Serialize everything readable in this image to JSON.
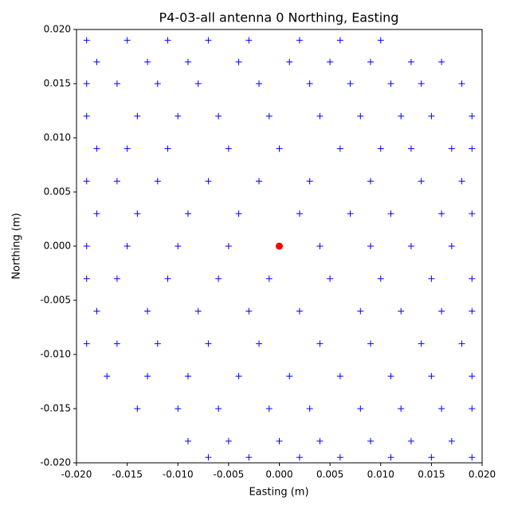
{
  "chart_data": {
    "type": "scatter",
    "title": "P4-03-all antenna 0 Northing, Easting",
    "x_label": "Easting (m)",
    "y_label": "Northing (m)",
    "xlim": [
      -0.02,
      0.02
    ],
    "ylim": [
      -0.02,
      0.02
    ],
    "xticks": [
      {
        "value": -0.02,
        "label": "-0.020"
      },
      {
        "value": -0.015,
        "label": "-0.015"
      },
      {
        "value": -0.01,
        "label": "-0.010"
      },
      {
        "value": -0.005,
        "label": "-0.005"
      },
      {
        "value": 0,
        "label": "0.000"
      },
      {
        "value": 0.005,
        "label": "0.005"
      },
      {
        "value": 0.01,
        "label": "0.010"
      },
      {
        "value": 0.015,
        "label": "0.015"
      },
      {
        "value": 0.02,
        "label": "0.020"
      }
    ],
    "yticks": [
      {
        "value": -0.02,
        "label": "-0.020"
      },
      {
        "value": -0.015,
        "label": "-0.015"
      },
      {
        "value": -0.01,
        "label": "-0.010"
      },
      {
        "value": -0.005,
        "label": "-0.005"
      },
      {
        "value": 0,
        "label": "0.000"
      },
      {
        "value": 0.005,
        "label": "0.005"
      },
      {
        "value": 0.01,
        "label": "0.010"
      },
      {
        "value": 0.015,
        "label": "0.015"
      },
      {
        "value": 0.02,
        "label": "0.020"
      }
    ],
    "series": [
      {
        "color": "#0000ff",
        "marker": "+",
        "x": [
          -0.019,
          -0.015,
          -0.011,
          -0.007,
          -0.003,
          0.002,
          0.006,
          0.01,
          -0.018,
          -0.013,
          -0.009,
          -0.004,
          0.001,
          0.005,
          0.009,
          0.013,
          0.016,
          -0.019,
          -0.016,
          -0.012,
          -0.008,
          -0.002,
          0.003,
          0.007,
          0.011,
          0.014,
          0.018,
          -0.019,
          -0.014,
          -0.01,
          -0.006,
          -0.001,
          0.004,
          0.008,
          0.012,
          0.015,
          0.019,
          -0.018,
          -0.015,
          -0.011,
          -0.005,
          0.0,
          0.006,
          0.01,
          0.013,
          0.017,
          0.019,
          -0.019,
          -0.016,
          -0.012,
          -0.007,
          -0.002,
          0.003,
          0.009,
          0.014,
          0.018,
          -0.018,
          -0.014,
          -0.009,
          -0.004,
          0.002,
          0.007,
          0.011,
          0.016,
          0.019,
          -0.019,
          -0.015,
          -0.01,
          -0.005,
          0.004,
          0.009,
          0.013,
          0.017,
          -0.019,
          -0.016,
          -0.011,
          -0.006,
          -0.001,
          0.005,
          0.01,
          0.015,
          0.019,
          -0.018,
          -0.013,
          -0.008,
          -0.003,
          0.002,
          0.008,
          0.012,
          0.016,
          0.019,
          -0.019,
          -0.016,
          -0.012,
          -0.007,
          -0.002,
          0.004,
          0.009,
          0.014,
          0.018,
          -0.017,
          -0.013,
          -0.009,
          -0.004,
          0.001,
          0.006,
          0.011,
          0.015,
          0.019,
          -0.014,
          -0.01,
          -0.006,
          -0.001,
          0.003,
          0.008,
          0.012,
          0.016,
          0.019,
          -0.009,
          -0.005,
          0.0,
          0.004,
          0.009,
          0.013,
          0.017,
          -0.007,
          -0.003,
          0.002,
          0.006,
          0.011,
          0.015,
          0.019
        ],
        "y": [
          0.019,
          0.019,
          0.019,
          0.019,
          0.019,
          0.019,
          0.019,
          0.019,
          0.017,
          0.017,
          0.017,
          0.017,
          0.017,
          0.017,
          0.017,
          0.017,
          0.017,
          0.015,
          0.015,
          0.015,
          0.015,
          0.015,
          0.015,
          0.015,
          0.015,
          0.015,
          0.015,
          0.012,
          0.012,
          0.012,
          0.012,
          0.012,
          0.012,
          0.012,
          0.012,
          0.012,
          0.012,
          0.009,
          0.009,
          0.009,
          0.009,
          0.009,
          0.009,
          0.009,
          0.009,
          0.009,
          0.009,
          0.006,
          0.006,
          0.006,
          0.006,
          0.006,
          0.006,
          0.006,
          0.006,
          0.006,
          0.003,
          0.003,
          0.003,
          0.003,
          0.003,
          0.003,
          0.003,
          0.003,
          0.003,
          0.0,
          0.0,
          0.0,
          0.0,
          0.0,
          0.0,
          0.0,
          0.0,
          -0.003,
          -0.003,
          -0.003,
          -0.003,
          -0.003,
          -0.003,
          -0.003,
          -0.003,
          -0.003,
          -0.006,
          -0.006,
          -0.006,
          -0.006,
          -0.006,
          -0.006,
          -0.006,
          -0.006,
          -0.006,
          -0.009,
          -0.009,
          -0.009,
          -0.009,
          -0.009,
          -0.009,
          -0.009,
          -0.009,
          -0.009,
          -0.012,
          -0.012,
          -0.012,
          -0.012,
          -0.012,
          -0.012,
          -0.012,
          -0.012,
          -0.012,
          -0.015,
          -0.015,
          -0.015,
          -0.015,
          -0.015,
          -0.015,
          -0.015,
          -0.015,
          -0.015,
          -0.018,
          -0.018,
          -0.018,
          -0.018,
          -0.018,
          -0.018,
          -0.018,
          -0.0195,
          -0.0195,
          -0.0195,
          -0.0195,
          -0.0195,
          -0.0195,
          -0.0195
        ]
      },
      {
        "color": "#ff0000",
        "marker": "o",
        "x": [
          0
        ],
        "y": [
          0
        ]
      }
    ]
  }
}
